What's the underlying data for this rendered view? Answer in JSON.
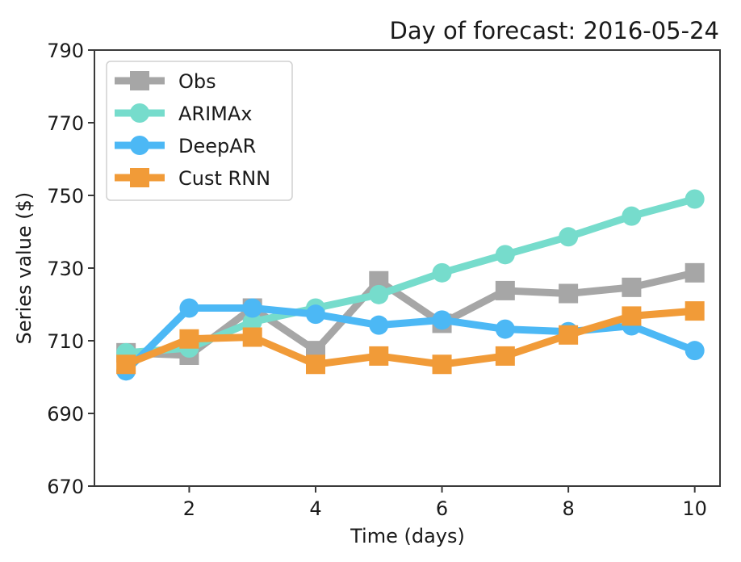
{
  "chart_data": {
    "type": "line",
    "title": "Day of forecast: 2016-05-24",
    "xlabel": "Time (days)",
    "ylabel": "Series value ($)",
    "xlim": [
      0.5,
      10.4
    ],
    "ylim": [
      670,
      790
    ],
    "xticks": [
      2,
      4,
      6,
      8,
      10
    ],
    "yticks": [
      670,
      690,
      710,
      730,
      750,
      770,
      790
    ],
    "grid": false,
    "legend_position": "top-left",
    "x": [
      1,
      2,
      3,
      4,
      5,
      6,
      7,
      8,
      9,
      10
    ],
    "series": [
      {
        "name": "Obs",
        "color": "#a6a6a6",
        "marker": "square",
        "values": [
          706.7,
          706.0,
          719.0,
          707.3,
          726.5,
          714.8,
          723.8,
          723.0,
          724.7,
          728.7
        ]
      },
      {
        "name": "ARIMAx",
        "color": "#76dccc",
        "marker": "circle",
        "values": [
          706.7,
          708.0,
          715.2,
          719.0,
          722.7,
          728.7,
          733.7,
          738.6,
          744.3,
          749.0
        ]
      },
      {
        "name": "DeepAR",
        "color": "#4cb8f5",
        "marker": "circle",
        "values": [
          701.7,
          719.0,
          719.0,
          717.3,
          714.3,
          715.7,
          713.2,
          712.5,
          714.1,
          707.3
        ]
      },
      {
        "name": "Cust RNN",
        "color": "#f19b38",
        "marker": "square",
        "values": [
          703.5,
          710.5,
          711.0,
          703.5,
          705.8,
          703.5,
          705.8,
          711.6,
          716.8,
          718.2
        ]
      }
    ]
  }
}
